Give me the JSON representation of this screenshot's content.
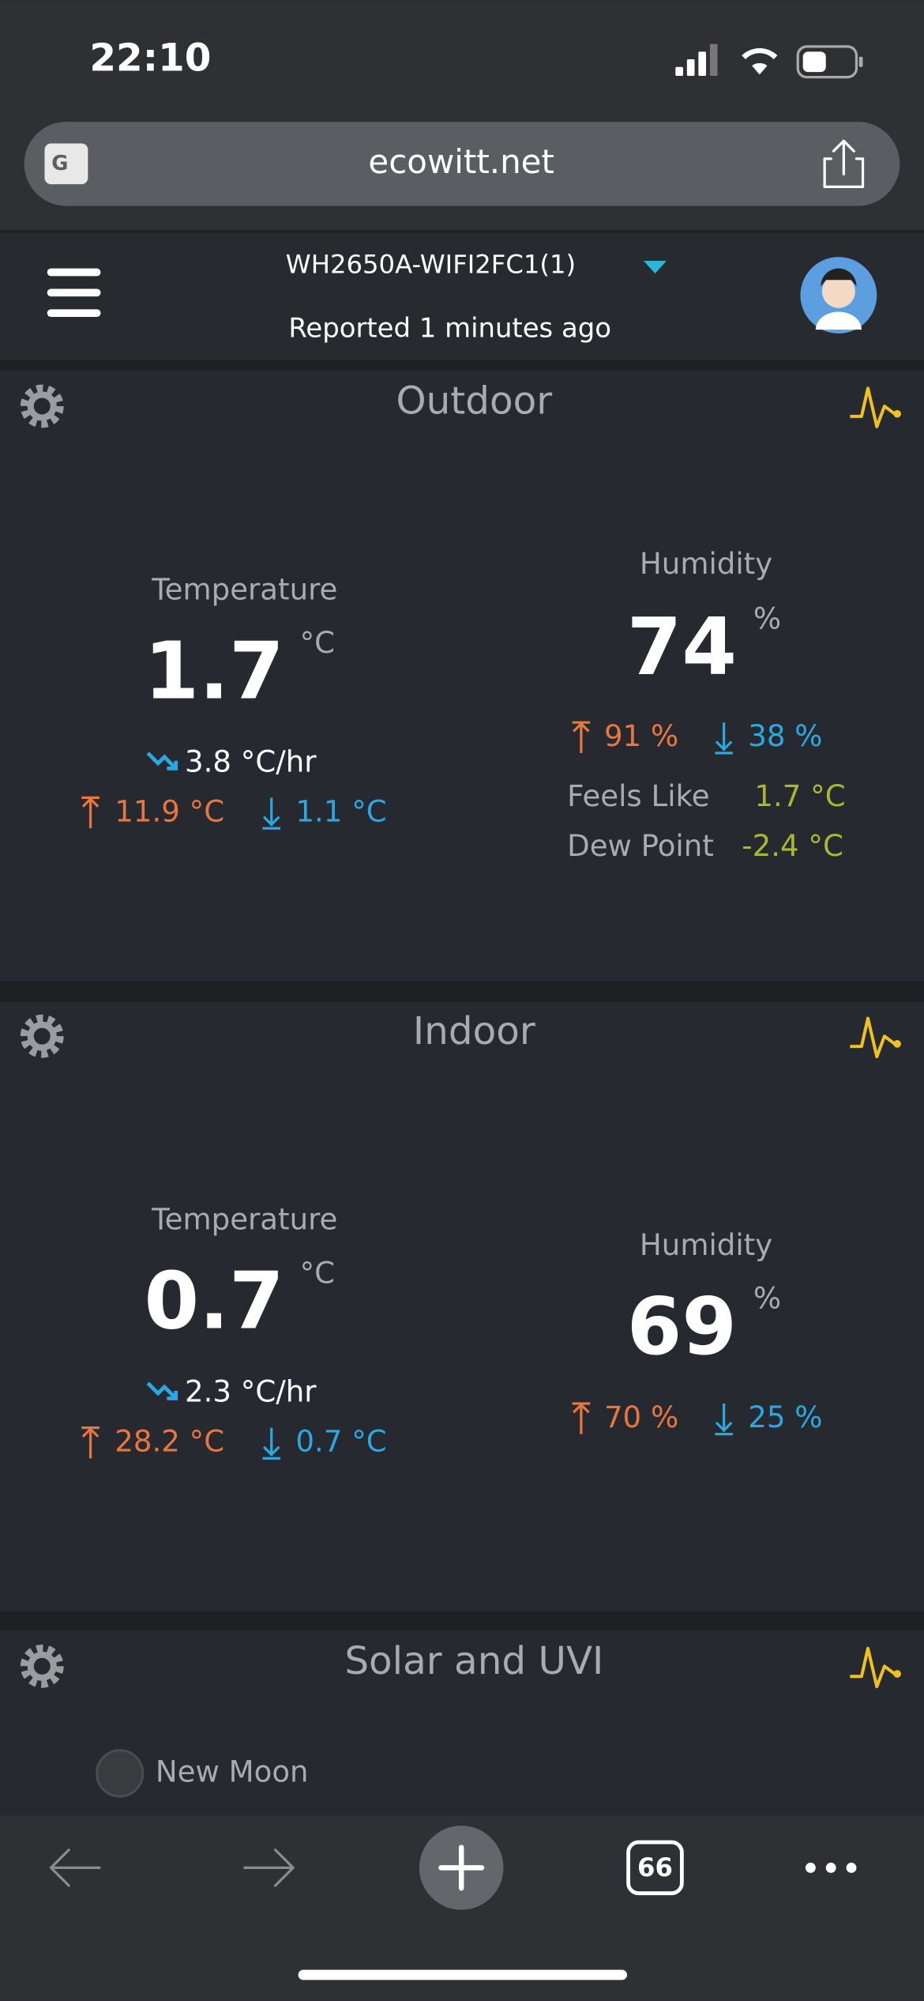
{
  "status_bar": {
    "time": "22:10"
  },
  "browser": {
    "url": "ecowitt.net",
    "tabs": "66"
  },
  "header": {
    "device": "WH2650A-WIFI2FC1(1)",
    "reported": "Reported 1 minutes ago"
  },
  "outdoor": {
    "title": "Outdoor",
    "temperature": {
      "label": "Temperature",
      "value": "1.7",
      "unit": "°C",
      "rate": "3.8 °C/hr",
      "high": "11.9 °C",
      "low": "1.1 °C"
    },
    "humidity": {
      "label": "Humidity",
      "value": "74",
      "unit": "%",
      "high": "91 %",
      "low": "38 %"
    },
    "feels_like": {
      "label": "Feels Like",
      "value": "1.7 °C"
    },
    "dew_point": {
      "label": "Dew Point",
      "value": "-2.4 °C"
    }
  },
  "indoor": {
    "title": "Indoor",
    "temperature": {
      "label": "Temperature",
      "value": "0.7",
      "unit": "°C",
      "rate": "2.3 °C/hr",
      "high": "28.2 °C",
      "low": "0.7 °C"
    },
    "humidity": {
      "label": "Humidity",
      "value": "69",
      "unit": "%",
      "high": "70 %",
      "low": "25 %"
    }
  },
  "solar": {
    "title": "Solar and UVI",
    "moon": "New Moon"
  }
}
